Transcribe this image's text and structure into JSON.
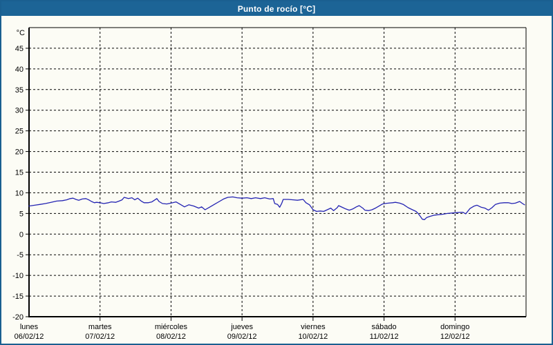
{
  "window": {
    "title": "Punto de rocío [°C]"
  },
  "colors": {
    "titlebar_bg": "#1c6496",
    "frame": "#1a5f90",
    "background": "#fcfcf5",
    "grid": "#000000",
    "axis": "#000000",
    "series_line": "#2222b2",
    "title_text": "#ffffff",
    "label_text": "#000000"
  },
  "chart_data": {
    "type": "line",
    "title": "Punto de rocío [°C]",
    "unit_label": "°C",
    "ylim": [
      -20,
      50
    ],
    "ytick_step": 5,
    "yticks": [
      -20,
      -15,
      -10,
      -5,
      0,
      5,
      10,
      15,
      20,
      25,
      30,
      35,
      40,
      45
    ],
    "grid": "dashed",
    "legend": "none",
    "x_days": [
      {
        "name": "lunes",
        "date": "06/02/12"
      },
      {
        "name": "martes",
        "date": "07/02/12"
      },
      {
        "name": "miércoles",
        "date": "08/02/12"
      },
      {
        "name": "jueves",
        "date": "09/02/12"
      },
      {
        "name": "viernes",
        "date": "10/02/12"
      },
      {
        "name": "sábado",
        "date": "11/02/12"
      },
      {
        "name": "domingo",
        "date": "12/02/12"
      }
    ],
    "series": [
      {
        "name": "Punto de rocío",
        "color": "#2222b2",
        "x_unit": "days_from_start",
        "y_unit": "°C",
        "points": [
          [
            0.0,
            6.8
          ],
          [
            0.08,
            7.0
          ],
          [
            0.16,
            7.2
          ],
          [
            0.23,
            7.4
          ],
          [
            0.31,
            7.7
          ],
          [
            0.39,
            8.0
          ],
          [
            0.47,
            8.1
          ],
          [
            0.53,
            8.3
          ],
          [
            0.58,
            8.6
          ],
          [
            0.62,
            8.7
          ],
          [
            0.66,
            8.4
          ],
          [
            0.7,
            8.2
          ],
          [
            0.75,
            8.5
          ],
          [
            0.8,
            8.6
          ],
          [
            0.84,
            8.3
          ],
          [
            0.88,
            7.9
          ],
          [
            0.92,
            7.6
          ],
          [
            0.95,
            7.7
          ],
          [
            1.0,
            7.6
          ],
          [
            1.05,
            7.4
          ],
          [
            1.12,
            7.6
          ],
          [
            1.16,
            7.8
          ],
          [
            1.22,
            7.7
          ],
          [
            1.27,
            8.0
          ],
          [
            1.31,
            8.3
          ],
          [
            1.34,
            8.9
          ],
          [
            1.4,
            8.6
          ],
          [
            1.45,
            8.8
          ],
          [
            1.49,
            8.3
          ],
          [
            1.53,
            8.7
          ],
          [
            1.58,
            8.0
          ],
          [
            1.62,
            7.6
          ],
          [
            1.68,
            7.6
          ],
          [
            1.73,
            7.8
          ],
          [
            1.8,
            8.6
          ],
          [
            1.83,
            7.9
          ],
          [
            1.88,
            7.4
          ],
          [
            1.94,
            7.3
          ],
          [
            2.0,
            7.5
          ],
          [
            2.07,
            7.8
          ],
          [
            2.13,
            7.2
          ],
          [
            2.19,
            6.6
          ],
          [
            2.25,
            7.1
          ],
          [
            2.32,
            6.8
          ],
          [
            2.39,
            6.3
          ],
          [
            2.43,
            6.6
          ],
          [
            2.48,
            5.9
          ],
          [
            2.54,
            6.5
          ],
          [
            2.61,
            7.2
          ],
          [
            2.68,
            7.9
          ],
          [
            2.74,
            8.5
          ],
          [
            2.8,
            8.9
          ],
          [
            2.87,
            9.0
          ],
          [
            2.93,
            8.8
          ],
          [
            3.0,
            8.7
          ],
          [
            3.07,
            8.8
          ],
          [
            3.13,
            8.6
          ],
          [
            3.19,
            8.8
          ],
          [
            3.26,
            8.6
          ],
          [
            3.32,
            8.8
          ],
          [
            3.39,
            8.5
          ],
          [
            3.44,
            8.6
          ],
          [
            3.46,
            7.4
          ],
          [
            3.5,
            7.2
          ],
          [
            3.53,
            6.5
          ],
          [
            3.56,
            7.5
          ],
          [
            3.58,
            8.4
          ],
          [
            3.65,
            8.4
          ],
          [
            3.72,
            8.3
          ],
          [
            3.78,
            8.2
          ],
          [
            3.86,
            8.4
          ],
          [
            3.9,
            7.6
          ],
          [
            3.95,
            7.1
          ],
          [
            3.98,
            6.4
          ],
          [
            4.0,
            5.9
          ],
          [
            4.05,
            5.5
          ],
          [
            4.1,
            5.6
          ],
          [
            4.15,
            5.5
          ],
          [
            4.2,
            5.9
          ],
          [
            4.25,
            6.3
          ],
          [
            4.29,
            5.7
          ],
          [
            4.34,
            6.4
          ],
          [
            4.36,
            6.9
          ],
          [
            4.41,
            6.5
          ],
          [
            4.46,
            6.1
          ],
          [
            4.51,
            5.8
          ],
          [
            4.56,
            6.1
          ],
          [
            4.61,
            6.6
          ],
          [
            4.65,
            6.9
          ],
          [
            4.7,
            6.3
          ],
          [
            4.73,
            5.8
          ],
          [
            4.78,
            5.7
          ],
          [
            4.83,
            5.9
          ],
          [
            4.88,
            6.3
          ],
          [
            4.93,
            6.8
          ],
          [
            4.98,
            7.3
          ],
          [
            5.01,
            7.4
          ],
          [
            5.06,
            7.5
          ],
          [
            5.12,
            7.6
          ],
          [
            5.16,
            7.7
          ],
          [
            5.22,
            7.5
          ],
          [
            5.27,
            7.2
          ],
          [
            5.34,
            6.4
          ],
          [
            5.4,
            5.9
          ],
          [
            5.45,
            5.5
          ],
          [
            5.48,
            5.0
          ],
          [
            5.51,
            4.3
          ],
          [
            5.54,
            3.6
          ],
          [
            5.57,
            3.5
          ],
          [
            5.6,
            4.0
          ],
          [
            5.65,
            4.3
          ],
          [
            5.71,
            4.6
          ],
          [
            5.76,
            4.7
          ],
          [
            5.82,
            4.8
          ],
          [
            5.89,
            5.0
          ],
          [
            5.95,
            5.1
          ],
          [
            6.02,
            5.2
          ],
          [
            6.08,
            5.3
          ],
          [
            6.11,
            5.3
          ],
          [
            6.15,
            4.9
          ],
          [
            6.21,
            6.2
          ],
          [
            6.27,
            6.8
          ],
          [
            6.31,
            7.0
          ],
          [
            6.37,
            6.5
          ],
          [
            6.42,
            6.3
          ],
          [
            6.47,
            5.8
          ],
          [
            6.52,
            6.4
          ],
          [
            6.57,
            7.2
          ],
          [
            6.63,
            7.5
          ],
          [
            6.69,
            7.6
          ],
          [
            6.75,
            7.6
          ],
          [
            6.8,
            7.4
          ],
          [
            6.85,
            7.5
          ],
          [
            6.91,
            7.9
          ],
          [
            6.95,
            7.4
          ],
          [
            6.98,
            7.1
          ]
        ]
      }
    ]
  }
}
